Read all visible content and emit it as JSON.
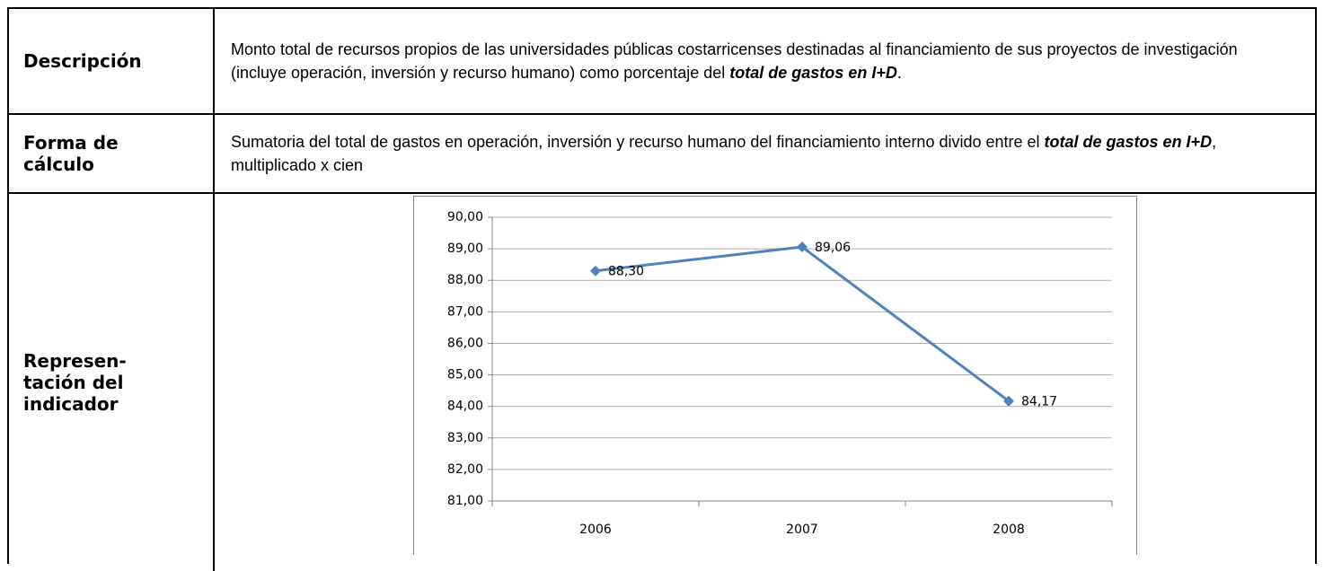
{
  "rows": [
    {
      "label": [
        "Descripción"
      ],
      "text": [
        "Monto total de recursos propios de las universidades públicas costarricenses destinadas al financiamiento de sus proyectos de investigación (incluye operación, inversión y recurso humano) como porcentaje del ",
        "total de gastos en I+D",
        "."
      ]
    },
    {
      "label": [
        "Forma de",
        "cálculo"
      ],
      "text": [
        "Sumatoria del total de gastos en operación, inversión y recurso humano del financiamiento interno divido entre el ",
        "total de gastos en I+D",
        ", multiplicado x cien"
      ]
    },
    {
      "label": [
        "Represen-",
        "tación del",
        "indicador"
      ]
    }
  ],
  "chart_data": {
    "type": "line",
    "categories": [
      "2006",
      "2007",
      "2008"
    ],
    "values": [
      88.3,
      89.06,
      84.17
    ],
    "value_labels": [
      "88,30",
      "89,06",
      "84,17"
    ],
    "color": "#4f81bd",
    "ylim": [
      81,
      90
    ],
    "yticks": [
      {
        "value": 81,
        "label": "81,00"
      },
      {
        "value": 82,
        "label": "82,00"
      },
      {
        "value": 83,
        "label": "83,00"
      },
      {
        "value": 84,
        "label": "84,00"
      },
      {
        "value": 85,
        "label": "85,00"
      },
      {
        "value": 86,
        "label": "86,00"
      },
      {
        "value": 87,
        "label": "87,00"
      },
      {
        "value": 88,
        "label": "88,00"
      },
      {
        "value": 89,
        "label": "89,00"
      },
      {
        "value": 90,
        "label": "90,00"
      }
    ],
    "grid": true
  }
}
